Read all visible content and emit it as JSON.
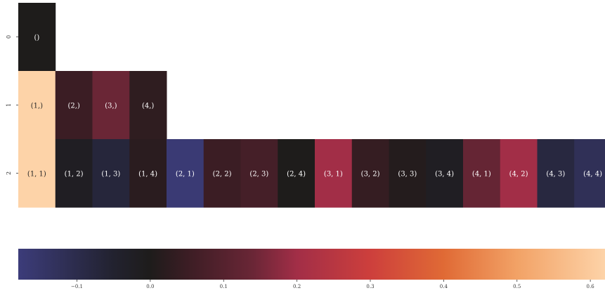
{
  "chart_data": {
    "type": "heatmap",
    "title": "",
    "xlabel": "",
    "ylabel": "",
    "row_labels": [
      "0",
      "1",
      "2"
    ],
    "rows": [
      {
        "row": "0",
        "cells": [
          {
            "label": "()",
            "value": 0.0
          }
        ]
      },
      {
        "row": "1",
        "cells": [
          {
            "label": "(1,)",
            "value": 0.62
          },
          {
            "label": "(2,)",
            "value": 0.05
          },
          {
            "label": "(3,)",
            "value": 0.14
          },
          {
            "label": "(4,)",
            "value": 0.03
          }
        ]
      },
      {
        "row": "2",
        "cells": [
          {
            "label": "(1, 1)",
            "value": 0.62
          },
          {
            "label": "(1, 2)",
            "value": -0.02
          },
          {
            "label": "(1, 3)",
            "value": -0.07
          },
          {
            "label": "(1, 4)",
            "value": 0.02
          },
          {
            "label": "(2, 1)",
            "value": -0.17
          },
          {
            "label": "(2, 2)",
            "value": 0.05
          },
          {
            "label": "(2, 3)",
            "value": 0.07
          },
          {
            "label": "(2, 4)",
            "value": 0.0
          },
          {
            "label": "(3, 1)",
            "value": 0.2
          },
          {
            "label": "(3, 2)",
            "value": 0.04
          },
          {
            "label": "(3, 3)",
            "value": 0.01
          },
          {
            "label": "(3, 4)",
            "value": -0.02
          },
          {
            "label": "(4, 1)",
            "value": 0.13
          },
          {
            "label": "(4, 2)",
            "value": 0.2
          },
          {
            "label": "(4, 3)",
            "value": -0.08
          },
          {
            "label": "(4, 4)",
            "value": -0.12
          }
        ]
      }
    ],
    "colorbar": {
      "range": [
        -0.18,
        0.62
      ],
      "ticks": [
        -0.1,
        0.0,
        0.1,
        0.2,
        0.3,
        0.4,
        0.5,
        0.6
      ],
      "tick_labels": [
        "−0.1",
        "0.0",
        "0.1",
        "0.2",
        "0.3",
        "0.4",
        "0.5",
        "0.6"
      ],
      "orientation": "horizontal",
      "placement": "bottom",
      "colormap_stops": [
        {
          "value": -0.18,
          "color": "#3c3c7a"
        },
        {
          "value": -0.05,
          "color": "#22222f"
        },
        {
          "value": 0.0,
          "color": "#1e1c1b"
        },
        {
          "value": 0.05,
          "color": "#3b1d24"
        },
        {
          "value": 0.14,
          "color": "#6a2636"
        },
        {
          "value": 0.2,
          "color": "#a22e47"
        },
        {
          "value": 0.3,
          "color": "#cd3f3c"
        },
        {
          "value": 0.4,
          "color": "#e06a35"
        },
        {
          "value": 0.5,
          "color": "#f2a266"
        },
        {
          "value": 0.62,
          "color": "#fdd3a8"
        }
      ]
    }
  }
}
